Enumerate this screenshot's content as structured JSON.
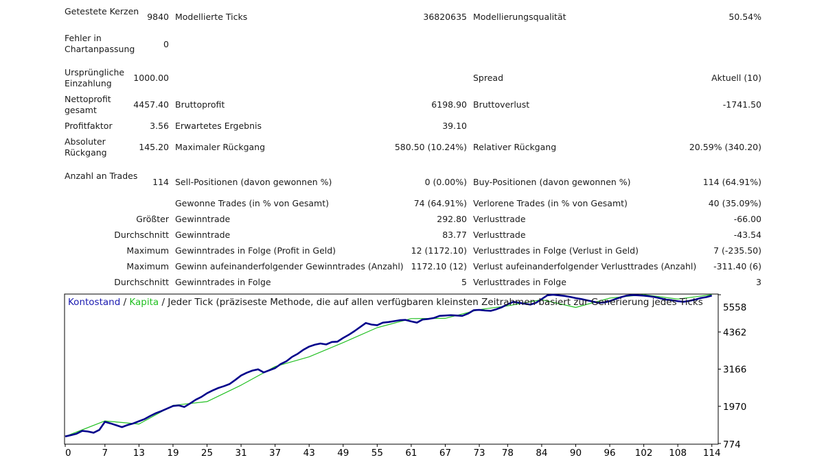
{
  "stats": {
    "r1": {
      "a": "Getestete Kerzen",
      "b": "9840",
      "c": "Modellierte Ticks",
      "d": "36820635",
      "e": "Modellierungsqualität",
      "f": "50.54%"
    },
    "r2": {
      "a": "Fehler in Chartanpassung",
      "b": "0"
    },
    "r3": {
      "a": "Ursprüngliche Einzahlung",
      "b": "1000.00",
      "e": "Spread",
      "f": "Aktuell (10)"
    },
    "r4": {
      "a": "Nettoprofit gesamt",
      "b": "4457.40",
      "c": "Bruttoprofit",
      "d": "6198.90",
      "e": "Bruttoverlust",
      "f": "-1741.50"
    },
    "r5": {
      "a": "Profitfaktor",
      "b": "3.56",
      "c": "Erwartetes Ergebnis",
      "d": "39.10"
    },
    "r6": {
      "a": "Absoluter Rückgang",
      "b": "145.20",
      "c": "Maximaler Rückgang",
      "d": "580.50 (10.24%)",
      "e": "Relativer Rückgang",
      "f": "20.59% (340.20)"
    },
    "r7": {
      "a": "Anzahl an Trades",
      "b": "114",
      "c": "Sell-Positionen (davon gewonnen %)",
      "d": "0 (0.00%)",
      "e": "Buy-Positionen (davon gewonnen %)",
      "f": "114 (64.91%)"
    },
    "r8": {
      "c": "Gewonne Trades (in % von Gesamt)",
      "d": "74 (64.91%)",
      "e": "Verlorene Trades (in % von Gesamt)",
      "f": "40 (35.09%)"
    },
    "r9": {
      "b": "Größter",
      "c": "Gewinntrade",
      "d": "292.80",
      "e": "Verlusttrade",
      "f": "-66.00"
    },
    "r10": {
      "b": "Durchschnitt",
      "c": "Gewinntrade",
      "d": "83.77",
      "e": "Verlusttrade",
      "f": "-43.54"
    },
    "r11": {
      "b": "Maximum",
      "c": "Gewinntrades in Folge (Profit in Geld)",
      "d": "12 (1172.10)",
      "e": "Verlusttrades in Folge (Verlust in Geld)",
      "f": "7 (-235.50)"
    },
    "r12": {
      "b": "Maximum",
      "c": "Gewinn aufeinanderfolgender Gewinntrades (Anzahl)",
      "d": "1172.10 (12)",
      "e": "Verlust aufeinanderfolgender Verlusttrades (Anzahl)",
      "f": "-311.40 (6)"
    },
    "r13": {
      "b": "Durchschnitt",
      "c": "Gewinntrades in Folge",
      "d": "5",
      "e": "Verlusttrades in Folge",
      "f": "3"
    }
  },
  "chart": {
    "legend_balance": "Kontostand",
    "legend_sep": " / ",
    "legend_equity": "Kapita",
    "legend_rest": " / Jeder Tick (präziseste Methode, die auf allen verfügbaren kleinsten Zeitrahmen basiert zur Generierung jedes Ticks",
    "colors": {
      "balance": "#00008b",
      "equity": "#22c022",
      "legend_balance": "#1a1ab0",
      "legend_equity": "#22c022",
      "axis": "#000000"
    }
  },
  "chart_data": {
    "type": "line",
    "x_ticks": [
      "0",
      "7",
      "13",
      "19",
      "25",
      "31",
      "37",
      "43",
      "49",
      "55",
      "61",
      "67",
      "73",
      "78",
      "84",
      "90",
      "96",
      "102",
      "108",
      "114"
    ],
    "y_ticks": [
      "5558",
      "4362",
      "3166",
      "1970",
      "774"
    ],
    "xlim": [
      0,
      115
    ],
    "ylim": [
      774,
      5558
    ],
    "series": [
      {
        "name": "Kontostand",
        "x": [
          0,
          1,
          2,
          3,
          4,
          5,
          6,
          7,
          8,
          9,
          10,
          11,
          12,
          13,
          14,
          15,
          16,
          17,
          18,
          19,
          20,
          21,
          22,
          23,
          24,
          25,
          26,
          27,
          28,
          29,
          30,
          31,
          32,
          33,
          34,
          35,
          36,
          37,
          38,
          39,
          40,
          41,
          42,
          43,
          44,
          45,
          46,
          47,
          48,
          49,
          50,
          51,
          52,
          53,
          54,
          55,
          56,
          57,
          58,
          59,
          60,
          61,
          62,
          63,
          64,
          65,
          66,
          67,
          68,
          69,
          70,
          71,
          72,
          73,
          74,
          75,
          76,
          77,
          78,
          79,
          80,
          81,
          82,
          83,
          84,
          85,
          86,
          87,
          88,
          89,
          90,
          91,
          92,
          93,
          94,
          95,
          96,
          97,
          98,
          99,
          100,
          101,
          102,
          103,
          104,
          105,
          106,
          107,
          108,
          109,
          110,
          111,
          112,
          113,
          114
        ],
        "values": [
          1000,
          1040,
          1090,
          1180,
          1160,
          1120,
          1210,
          1470,
          1420,
          1360,
          1300,
          1370,
          1420,
          1490,
          1560,
          1660,
          1750,
          1820,
          1900,
          1980,
          2000,
          1950,
          2060,
          2180,
          2270,
          2390,
          2480,
          2560,
          2620,
          2690,
          2820,
          2960,
          3050,
          3120,
          3160,
          3060,
          3130,
          3200,
          3330,
          3420,
          3560,
          3660,
          3790,
          3890,
          3950,
          3990,
          3960,
          4040,
          4050,
          4170,
          4270,
          4390,
          4520,
          4650,
          4600,
          4580,
          4660,
          4680,
          4710,
          4740,
          4750,
          4700,
          4660,
          4760,
          4780,
          4810,
          4880,
          4890,
          4900,
          4890,
          4880,
          4950,
          5060,
          5070,
          5050,
          5040,
          5090,
          5160,
          5250,
          5330,
          5300,
          5270,
          5240,
          5300,
          5420,
          5540,
          5560,
          5540,
          5520,
          5490,
          5450,
          5420,
          5380,
          5340,
          5300,
          5310,
          5350,
          5420,
          5480,
          5530,
          5550,
          5540,
          5530,
          5510,
          5480,
          5440,
          5400,
          5380,
          5350,
          5330,
          5360,
          5400,
          5450,
          5480,
          5530
        ],
        "note_points_count": "115"
      },
      {
        "name": "Kapita",
        "x": [
          0,
          7,
          13,
          19,
          25,
          31,
          37,
          43,
          49,
          55,
          61,
          67,
          73,
          78,
          84,
          90,
          96,
          102,
          108,
          114
        ],
        "values": [
          1000,
          1500,
          1400,
          2000,
          2120,
          2650,
          3250,
          3560,
          4020,
          4500,
          4790,
          4800,
          5080,
          5200,
          5400,
          5150,
          5450,
          5560,
          5420,
          5560
        ]
      }
    ]
  }
}
